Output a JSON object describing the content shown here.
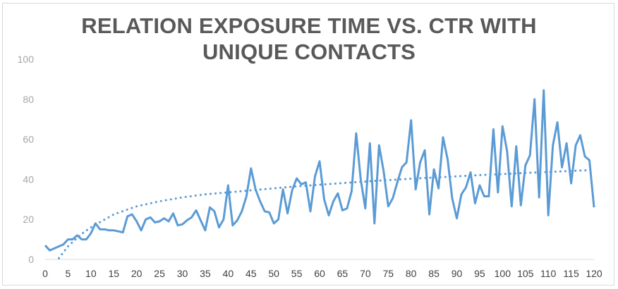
{
  "chart_data": {
    "type": "line",
    "title_lines": [
      "RELATION EXPOSURE TIME VS. CTR WITH",
      "UNIQUE CONTACTS"
    ],
    "xlabel": "",
    "ylabel": "",
    "xlim": [
      0,
      120
    ],
    "ylim": [
      0,
      100
    ],
    "x_ticks": [
      "0",
      "5",
      "10",
      "15",
      "20",
      "25",
      "30",
      "35",
      "40",
      "45",
      "50",
      "55",
      "60",
      "65",
      "70",
      "75",
      "80",
      "85",
      "90",
      "95",
      "100",
      "105",
      "110",
      "115",
      "120"
    ],
    "y_ticks": [
      "0",
      "20",
      "40",
      "60",
      "80",
      "100"
    ],
    "grid": false,
    "legend": "none",
    "series": [
      {
        "color": "#5b9bd5",
        "x": [
          0,
          1,
          2,
          3,
          4,
          5,
          6,
          7,
          8,
          9,
          10,
          11,
          12,
          13,
          14,
          15,
          16,
          17,
          18,
          19,
          20,
          21,
          22,
          23,
          24,
          25,
          26,
          27,
          28,
          29,
          30,
          31,
          32,
          33,
          34,
          35,
          36,
          37,
          38,
          39,
          40,
          41,
          42,
          43,
          44,
          45,
          46,
          47,
          48,
          49,
          50,
          51,
          52,
          53,
          54,
          55,
          56,
          57,
          58,
          59,
          60,
          61,
          62,
          63,
          64,
          65,
          66,
          67,
          68,
          69,
          70,
          71,
          72,
          73,
          74,
          75,
          76,
          77,
          78,
          79,
          80,
          81,
          82,
          83,
          84,
          85,
          86,
          87,
          88,
          89,
          90,
          91,
          92,
          93,
          94,
          95,
          96,
          97,
          98,
          99,
          100,
          101,
          102,
          103,
          104,
          105,
          106,
          107,
          108,
          109,
          110,
          111,
          112,
          113,
          114,
          115,
          116,
          117,
          118,
          119,
          120
        ],
        "values": [
          7,
          4.5,
          5.5,
          6.5,
          7.5,
          10,
          10,
          12,
          10,
          10,
          13,
          18,
          15,
          15,
          14.5,
          14.5,
          14,
          13.5,
          21.5,
          22.5,
          19,
          14.5,
          20,
          21,
          18.5,
          19,
          20.5,
          19,
          23,
          17,
          17.5,
          19.5,
          21,
          24.5,
          19.5,
          14.5,
          26,
          24,
          16,
          20,
          37,
          17,
          19.5,
          24,
          31.5,
          45.5,
          35,
          29,
          24,
          23.5,
          18,
          20,
          35,
          23,
          34.5,
          40.5,
          37.5,
          38.5,
          24,
          41.5,
          49,
          30,
          22,
          29,
          33,
          24.5,
          25.5,
          34,
          63,
          40,
          25.5,
          58,
          18,
          57,
          44,
          26.5,
          30.5,
          38.5,
          46,
          48.5,
          69.5,
          35,
          48.5,
          54.5,
          22.5,
          45,
          35.5,
          61,
          50,
          30.5,
          20.5,
          32.5,
          36,
          43.5,
          28,
          37,
          31.5,
          31.5,
          65,
          33.5,
          66.5,
          54,
          26.5,
          56.5,
          27,
          47,
          52,
          80,
          31,
          84.5,
          22,
          57,
          68.5,
          46,
          58,
          38,
          57,
          62,
          51.5,
          49.5,
          26
        ]
      },
      {
        "type": "trendline",
        "style": "dotted",
        "color": "#5b9bd5",
        "x": [
          3,
          5,
          8,
          10,
          15,
          20,
          25,
          30,
          35,
          40,
          45,
          50,
          55,
          60,
          65,
          70,
          75,
          80,
          85,
          90,
          95,
          100,
          105,
          110,
          115,
          120
        ],
        "values": [
          0.6,
          6.5,
          12.8,
          16,
          22.5,
          26.5,
          29,
          31,
          32.5,
          33.5,
          34.5,
          35.5,
          36.5,
          37.3,
          38.1,
          38.9,
          39.6,
          40.3,
          40.9,
          41.5,
          42.1,
          42.6,
          43.2,
          43.7,
          44.2,
          44.7
        ]
      }
    ]
  }
}
